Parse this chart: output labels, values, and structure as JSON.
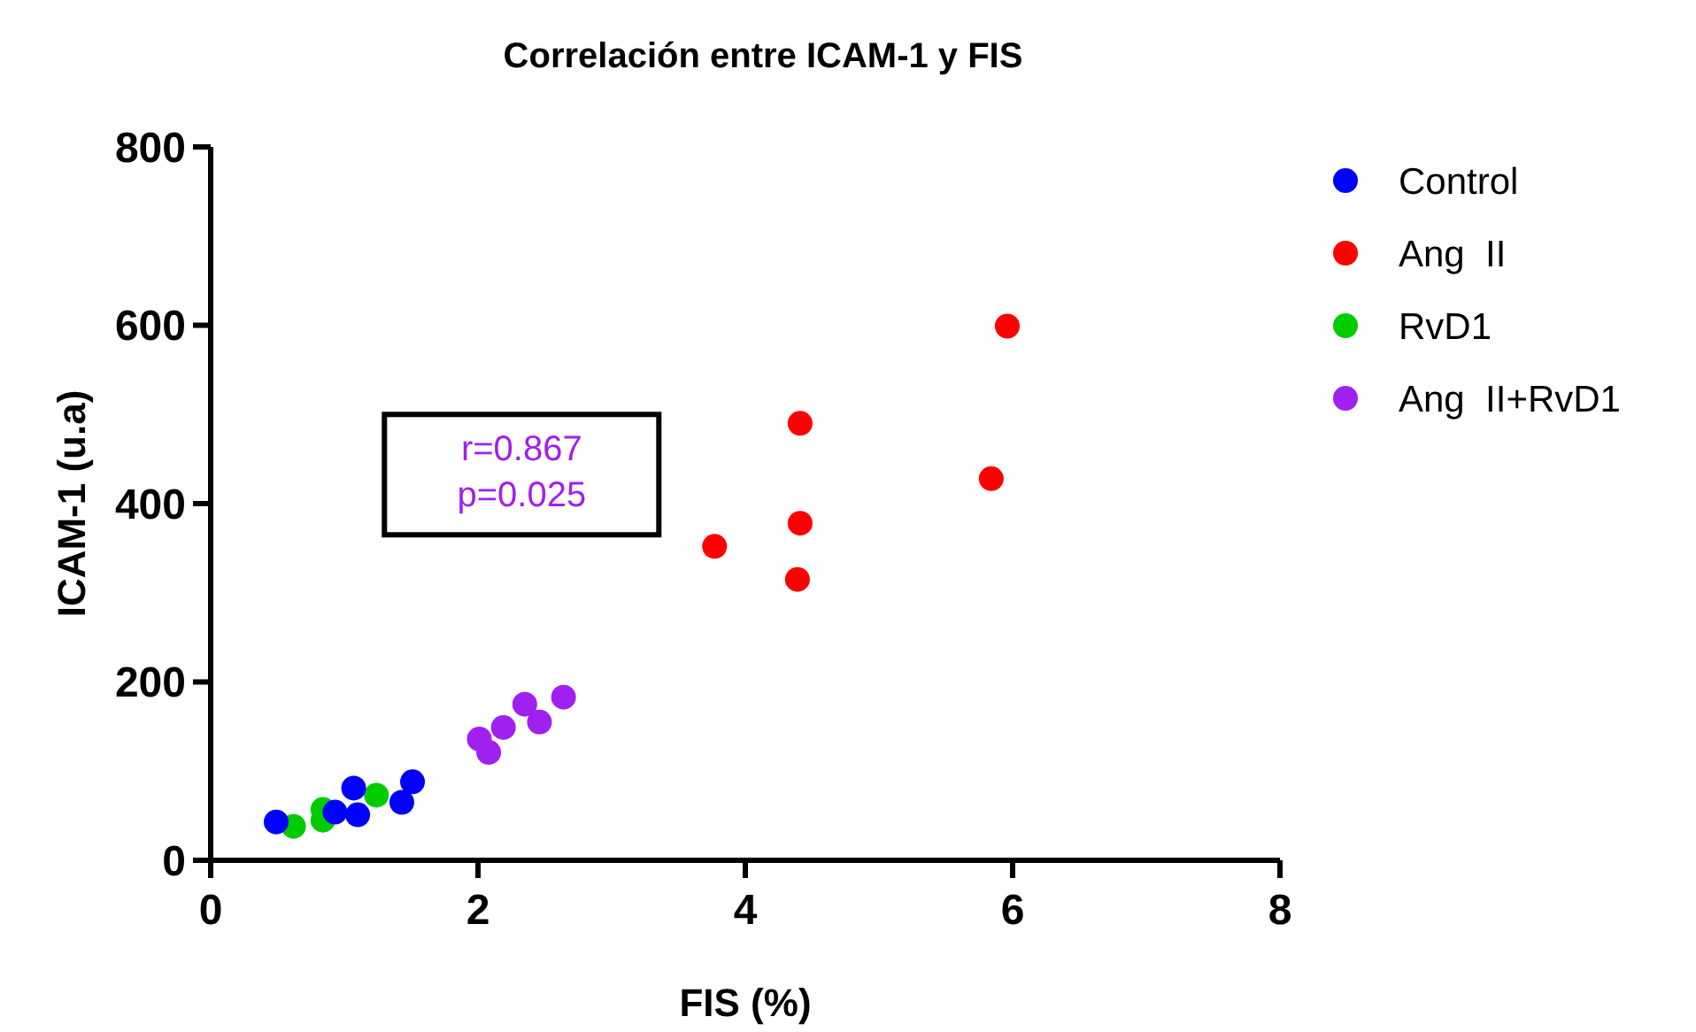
{
  "chart_data": {
    "type": "scatter",
    "title": "Correlación entre ICAM-1 y FIS",
    "xlabel": "FIS (%)",
    "ylabel": "ICAM-1 (u.a)",
    "xlim": [
      0,
      8
    ],
    "xticks": [
      0,
      2,
      4,
      6,
      8
    ],
    "ylim": [
      0,
      800
    ],
    "yticks": [
      0,
      200,
      400,
      600,
      800
    ],
    "grid": false,
    "legend": "top right",
    "marker": "circle",
    "annotations": [
      "r=0.867",
      "p=0.025"
    ],
    "series": [
      {
        "name": "Control",
        "color": "#0000ff",
        "x": [
          0.49,
          1.07,
          0.93,
          1.1,
          1.43,
          1.51
        ],
        "values": [
          43,
          81,
          54,
          51,
          65,
          88
        ]
      },
      {
        "name": "Ang  II",
        "color": "#ff0000",
        "x": [
          5.96,
          4.41,
          5.84,
          4.41,
          3.77,
          4.39
        ],
        "values": [
          599,
          490,
          428,
          378,
          352,
          315
        ]
      },
      {
        "name": "RvD1",
        "color": "#00cc00",
        "x": [
          0.62,
          0.84,
          0.84,
          1.24
        ],
        "values": [
          38,
          57,
          45,
          73
        ]
      },
      {
        "name": "Ang  II+RvD1",
        "color": "#a020f0",
        "x": [
          2.01,
          2.08,
          2.19,
          2.35,
          2.46,
          2.64
        ],
        "values": [
          136,
          121,
          149,
          175,
          155,
          183
        ]
      }
    ]
  }
}
